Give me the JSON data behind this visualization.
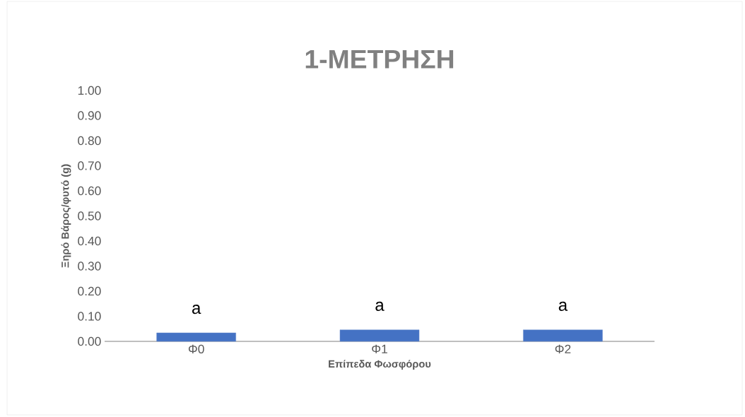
{
  "chart_data": {
    "type": "bar",
    "title": "1-ΜΕΤΡΗΣΗ",
    "xlabel": "Επίπεδα Φωσφόρου",
    "ylabel": "Ξηρό Βάρος/φυτό (g)",
    "categories": [
      "Φ0",
      "Φ1",
      "Φ2"
    ],
    "values": [
      0.034,
      0.046,
      0.046
    ],
    "color": "#4472c4",
    "ylim": [
      0,
      1
    ],
    "yticks": [
      {
        "value": 0,
        "label": "0.00"
      },
      {
        "value": 0.1,
        "label": "0.10"
      },
      {
        "value": 0.2,
        "label": "0.20"
      },
      {
        "value": 0.3,
        "label": "0.30"
      },
      {
        "value": 0.4,
        "label": "0.40"
      },
      {
        "value": 0.5,
        "label": "0.50"
      },
      {
        "value": 0.6,
        "label": "0.60"
      },
      {
        "value": 0.7,
        "label": "0.70"
      },
      {
        "value": 0.8,
        "label": "0.80"
      },
      {
        "value": 0.9,
        "label": "0.90"
      },
      {
        "value": 1,
        "label": "1.00"
      }
    ],
    "annotations": [
      "a",
      "a",
      "a"
    ]
  }
}
